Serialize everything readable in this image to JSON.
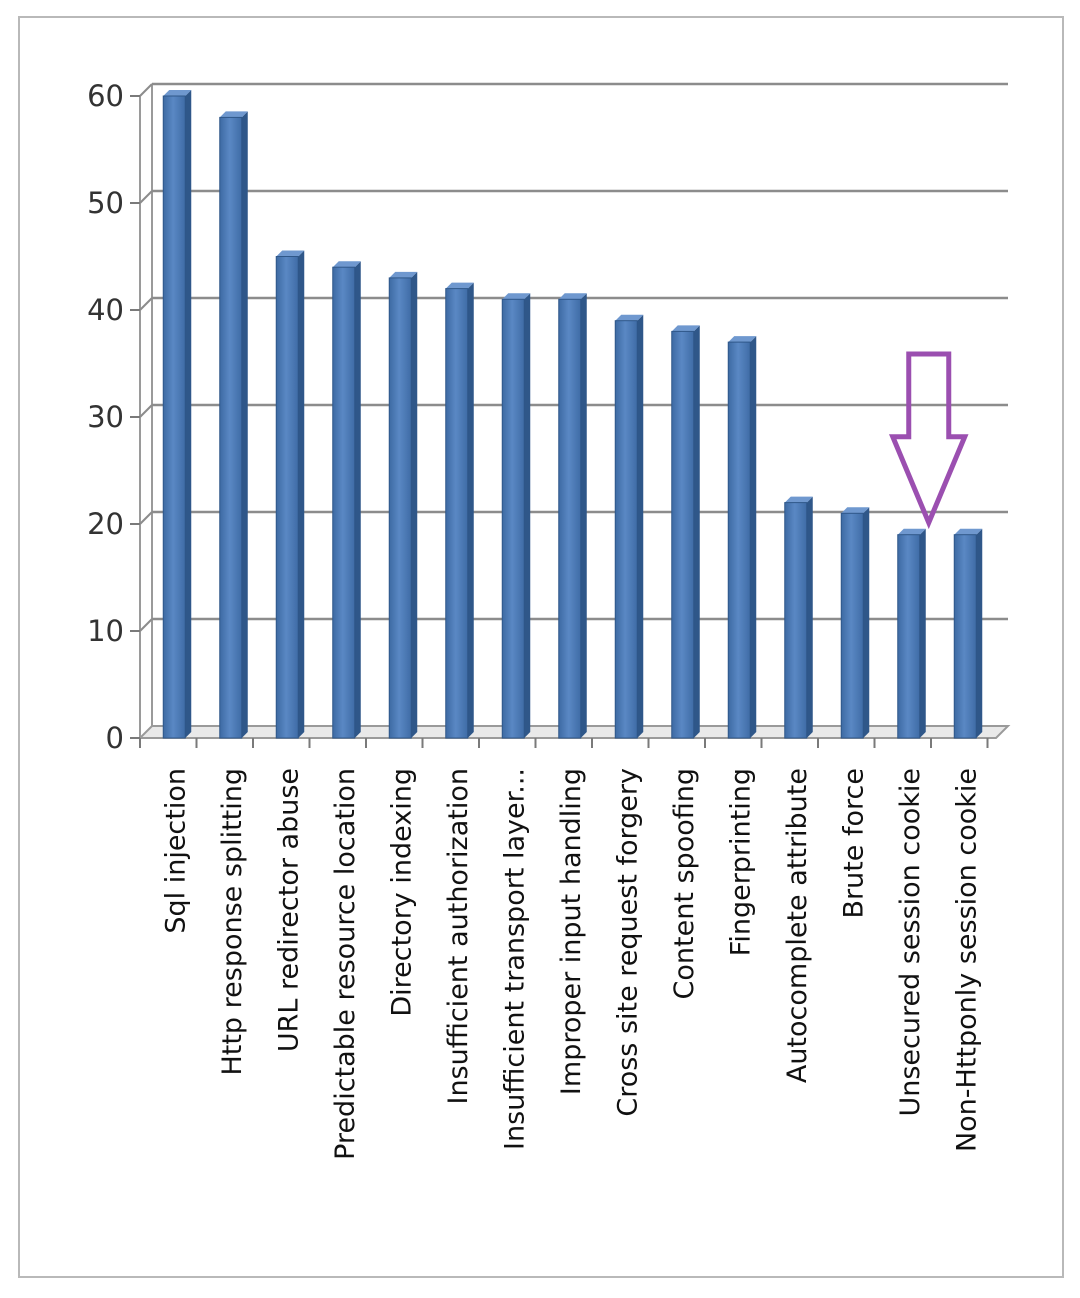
{
  "chart_data": {
    "type": "bar",
    "categories": [
      "Sql injection",
      "Http response splitting",
      "URL redirector abuse",
      "Predictable resource location",
      "Directory indexing",
      "Insufficient authorization",
      "Insufficient transport layer...",
      "Improper input handling",
      "Cross site request forgery",
      "Content spoofing",
      "Fingerprinting",
      "Autocomplete attribute",
      "Brute force",
      "Unsecured session cookie",
      "Non-Httponly session cookie"
    ],
    "values": [
      60,
      58,
      45,
      44,
      43,
      42,
      41,
      41,
      39,
      38,
      37,
      22,
      21,
      19,
      19
    ],
    "yticks": [
      "0",
      "10",
      "20",
      "30",
      "40",
      "50",
      "60"
    ],
    "ylim": [
      0,
      60
    ],
    "grid": true,
    "legend": "none",
    "bar_color": "#4f81bd",
    "annotation": {
      "type": "arrow",
      "color": "#9b4fb0",
      "points_to_category": "Unsecured session cookie"
    }
  }
}
